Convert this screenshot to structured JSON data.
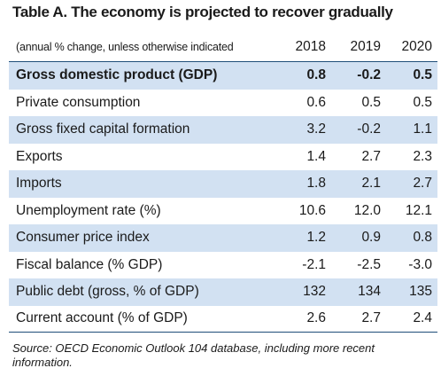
{
  "title": "Table A. The economy is projected to recover gradually",
  "header": {
    "note": "(annual % change, unless otherwise indicated",
    "years": [
      "2018",
      "2019",
      "2020"
    ]
  },
  "rows": [
    {
      "label": "Gross domestic product (GDP)",
      "values": [
        "0.8",
        "-0.2",
        "0.5"
      ]
    },
    {
      "label": "Private consumption",
      "values": [
        "0.6",
        "0.5",
        "0.5"
      ]
    },
    {
      "label": "Gross fixed capital formation",
      "values": [
        "3.2",
        "-0.2",
        "1.1"
      ]
    },
    {
      "label": "Exports",
      "values": [
        "1.4",
        "2.7",
        "2.3"
      ]
    },
    {
      "label": "Imports",
      "values": [
        "1.8",
        "2.1",
        "2.7"
      ]
    },
    {
      "label": "Unemployment rate (%)",
      "values": [
        "10.6",
        "12.0",
        "12.1"
      ]
    },
    {
      "label": "Consumer price index",
      "values": [
        "1.2",
        "0.9",
        "0.8"
      ]
    },
    {
      "label": "Fiscal balance (% GDP)",
      "values": [
        "-2.1",
        "-2.5",
        "-3.0"
      ]
    },
    {
      "label": "Public debt (gross, % of GDP)",
      "values": [
        "132",
        "134",
        "135"
      ]
    },
    {
      "label": "Current account (% of GDP)",
      "values": [
        "2.6",
        "2.7",
        "2.4"
      ]
    }
  ],
  "source": "Source: OECD Economic Outlook 104 database, including more recent information.",
  "colors": {
    "shade": "#d2e1f2",
    "rule": "#1f4e79"
  }
}
